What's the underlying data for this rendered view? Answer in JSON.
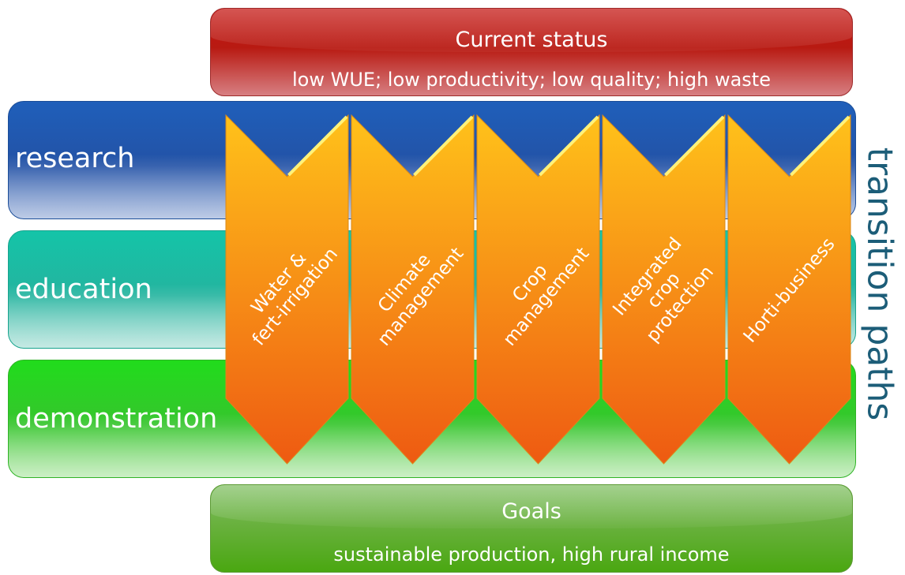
{
  "status": {
    "title": "Current status",
    "subtitle": "low WUE; low productivity; low quality; high waste"
  },
  "bands": [
    {
      "label": "research",
      "color": "#2352a6"
    },
    {
      "label": "education",
      "color": "#24b49f"
    },
    {
      "label": "demonstration",
      "color": "#36c52d"
    }
  ],
  "chevrons": [
    {
      "label": "Water &\nfert-irrigation"
    },
    {
      "label": "Climate\nmanagement"
    },
    {
      "label": "Crop\nmanagement"
    },
    {
      "label": "Integrated\ncrop\nprotection"
    },
    {
      "label": "Horti-business"
    }
  ],
  "chevron_colors": {
    "top": "#ffc21a",
    "bottom": "#ee5a12"
  },
  "vertical_title": "transition paths",
  "goals": {
    "title": "Goals",
    "subtitle": "sustainable production, high rural income"
  }
}
